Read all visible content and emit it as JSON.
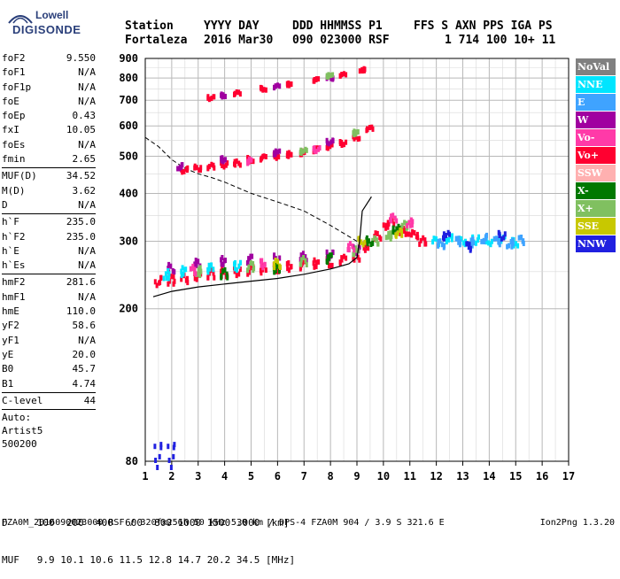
{
  "logo": {
    "line1": "Lowell",
    "line2": "DIGISONDE"
  },
  "header": {
    "row1": [
      "Station",
      "YYYY DAY",
      "DDD HHMMSS P1",
      "FFS S AXN PPS IGA PS"
    ],
    "row2": [
      "Fortaleza",
      "2016 Mar30",
      "090 023000 RSF",
      "1 714 100 10+ 11"
    ]
  },
  "params": {
    "group1": [
      {
        "label": "foF2",
        "value": "9.550"
      },
      {
        "label": "foF1",
        "value": "N/A"
      },
      {
        "label": "foF1p",
        "value": "N/A"
      },
      {
        "label": "foE",
        "value": "N/A"
      },
      {
        "label": "foEp",
        "value": "0.43"
      },
      {
        "label": "fxI",
        "value": "10.05"
      },
      {
        "label": "foEs",
        "value": "N/A"
      },
      {
        "label": "fmin",
        "value": "2.65"
      }
    ],
    "group2": [
      {
        "label": "MUF(D)",
        "value": "34.52"
      },
      {
        "label": "M(D)",
        "value": "3.62"
      },
      {
        "label": "D",
        "value": "N/A"
      }
    ],
    "group3": [
      {
        "label": "h`F",
        "value": "235.0"
      },
      {
        "label": "h`F2",
        "value": "235.0"
      },
      {
        "label": "h`E",
        "value": "N/A"
      },
      {
        "label": "h`Es",
        "value": "N/A"
      }
    ],
    "group4": [
      {
        "label": "hmF2",
        "value": "281.6"
      },
      {
        "label": "hmF1",
        "value": "N/A"
      },
      {
        "label": "hmE",
        "value": "110.0"
      },
      {
        "label": "yF2",
        "value": "58.6"
      },
      {
        "label": "yF1",
        "value": "N/A"
      },
      {
        "label": "yE",
        "value": "20.0"
      },
      {
        "label": "B0",
        "value": "45.7"
      },
      {
        "label": "B1",
        "value": "4.74"
      }
    ],
    "group5": [
      {
        "label": "C-level",
        "value": "44"
      }
    ],
    "auto_lines": [
      "Auto:",
      "Artist5",
      "500200"
    ]
  },
  "legend": [
    {
      "label": "NoVal",
      "color": "#808080"
    },
    {
      "label": "NNE",
      "color": "#00e5ff"
    },
    {
      "label": "E",
      "color": "#3fa3ff"
    },
    {
      "label": "W",
      "color": "#a000a0"
    },
    {
      "label": "Vo-",
      "color": "#ff3aa8"
    },
    {
      "label": "Vo+",
      "color": "#ff0030"
    },
    {
      "label": "SSW",
      "color": "#ffb0b0"
    },
    {
      "label": "X-",
      "color": "#007800"
    },
    {
      "label": "X+",
      "color": "#80c060"
    },
    {
      "label": "SSE",
      "color": "#c8c800"
    },
    {
      "label": "NNW",
      "color": "#2020e0"
    }
  ],
  "chart_data": {
    "type": "scatter",
    "title": "",
    "xlabel": "",
    "ylabel": "",
    "x_ticks": [
      "1",
      "2",
      "3",
      "4",
      "5",
      "6",
      "7",
      "8",
      "9",
      "10",
      "11",
      "12",
      "13",
      "14",
      "15",
      "16",
      "17"
    ],
    "y_ticks": [
      "80",
      "200",
      "300",
      "400",
      "500",
      "600",
      "700",
      "800",
      "900"
    ],
    "xlim": [
      1,
      17
    ],
    "ylim": [
      80,
      900
    ],
    "y_scale": "log",
    "grid": true,
    "series": [
      {
        "name": "Vo+",
        "color": "#ff0030",
        "points": [
          [
            1.5,
            236
          ],
          [
            2,
            238
          ],
          [
            2.5,
            240
          ],
          [
            3,
            244
          ],
          [
            3.5,
            246
          ],
          [
            4,
            248
          ],
          [
            4.5,
            250
          ],
          [
            5,
            252
          ],
          [
            5.5,
            254
          ],
          [
            6,
            256
          ],
          [
            6.5,
            258
          ],
          [
            7,
            260
          ],
          [
            7.5,
            262
          ],
          [
            8,
            264
          ],
          [
            8.5,
            268
          ],
          [
            9,
            274
          ],
          [
            9.4,
            290
          ],
          [
            9.8,
            310
          ],
          [
            10.1,
            330
          ],
          [
            10.3,
            335
          ],
          [
            10.6,
            320
          ],
          [
            10.9,
            318
          ],
          [
            11.2,
            312
          ],
          [
            11.5,
            300
          ],
          [
            2.5,
            460
          ],
          [
            3,
            465
          ],
          [
            3.5,
            470
          ],
          [
            4,
            475
          ],
          [
            4.5,
            480
          ],
          [
            5,
            490
          ],
          [
            5.5,
            495
          ],
          [
            6,
            500
          ],
          [
            6.5,
            505
          ],
          [
            7,
            510
          ],
          [
            7.5,
            520
          ],
          [
            8,
            530
          ],
          [
            8.5,
            540
          ],
          [
            9,
            560
          ],
          [
            9.5,
            590
          ],
          [
            3.5,
            710
          ],
          [
            4.5,
            730
          ],
          [
            5.5,
            750
          ],
          [
            6.5,
            770
          ],
          [
            7.5,
            790
          ],
          [
            8.5,
            815
          ],
          [
            9.2,
            840
          ]
        ]
      },
      {
        "name": "W",
        "color": "#a000a0",
        "points": [
          [
            2,
            255
          ],
          [
            3,
            262
          ],
          [
            4,
            266
          ],
          [
            5,
            268
          ],
          [
            6,
            270
          ],
          [
            7,
            273
          ],
          [
            8,
            276
          ],
          [
            9,
            285
          ],
          [
            2.3,
            470
          ],
          [
            4,
            490
          ],
          [
            6,
            510
          ],
          [
            8,
            545
          ],
          [
            4,
            720
          ],
          [
            6,
            760
          ],
          [
            8,
            800
          ]
        ]
      },
      {
        "name": "NNE",
        "color": "#00e5ff",
        "points": [
          [
            1.8,
            245
          ],
          [
            2.5,
            250
          ],
          [
            3.5,
            255
          ],
          [
            4.5,
            258
          ],
          [
            12,
            300
          ],
          [
            12.5,
            305
          ],
          [
            13,
            300
          ],
          [
            13.5,
            302
          ],
          [
            14,
            300
          ],
          [
            14.5,
            303
          ],
          [
            15,
            298
          ]
        ]
      },
      {
        "name": "E",
        "color": "#3fa3ff",
        "points": [
          [
            12.2,
            295
          ],
          [
            12.8,
            300
          ],
          [
            13.3,
            298
          ],
          [
            13.8,
            305
          ],
          [
            14.3,
            300
          ],
          [
            14.8,
            296
          ],
          [
            15.2,
            302
          ]
        ]
      },
      {
        "name": "NNW",
        "color": "#2020e0",
        "points": [
          [
            12.4,
            310
          ],
          [
            13.2,
            290
          ],
          [
            14.5,
            310
          ],
          [
            1.5,
            83
          ],
          [
            2,
            83
          ]
        ]
      },
      {
        "name": "X+",
        "color": "#80c060",
        "points": [
          [
            3,
            250
          ],
          [
            5,
            258
          ],
          [
            7,
            266
          ],
          [
            9,
            282
          ],
          [
            9.7,
            300
          ],
          [
            10.2,
            310
          ],
          [
            10.8,
            330
          ],
          [
            7,
            515
          ],
          [
            9,
            575
          ],
          [
            8,
            810
          ]
        ]
      },
      {
        "name": "X-",
        "color": "#007800",
        "points": [
          [
            4,
            247
          ],
          [
            6,
            255
          ],
          [
            8,
            270
          ],
          [
            9.5,
            300
          ],
          [
            10.5,
            322
          ]
        ]
      },
      {
        "name": "Vo-",
        "color": "#ff3aa8",
        "points": [
          [
            2.8,
            252
          ],
          [
            5.5,
            262
          ],
          [
            8.8,
            290
          ],
          [
            10.4,
            345
          ],
          [
            11,
            335
          ],
          [
            5,
            485
          ],
          [
            7.5,
            520
          ]
        ]
      },
      {
        "name": "SSE",
        "color": "#c8c800",
        "points": [
          [
            6,
            262
          ],
          [
            9.2,
            300
          ],
          [
            10.6,
            315
          ]
        ]
      }
    ],
    "profile_curve": [
      [
        1.3,
        215
      ],
      [
        2,
        222
      ],
      [
        3,
        228
      ],
      [
        4,
        232
      ],
      [
        5,
        236
      ],
      [
        6,
        240
      ],
      [
        7,
        246
      ],
      [
        8,
        254
      ],
      [
        8.7,
        262
      ],
      [
        9.0,
        272
      ],
      [
        9.1,
        300
      ],
      [
        9.2,
        360
      ],
      [
        9.55,
        392
      ]
    ],
    "muf_curve": [
      [
        1.0,
        560
      ],
      [
        1.5,
        530
      ],
      [
        2,
        490
      ],
      [
        2.5,
        465
      ],
      [
        3,
        450
      ],
      [
        3.5,
        440
      ],
      [
        4,
        428
      ],
      [
        5,
        400
      ],
      [
        6,
        380
      ],
      [
        7,
        360
      ],
      [
        8,
        330
      ],
      [
        9,
        300
      ],
      [
        9.5,
        285
      ]
    ]
  },
  "footer": {
    "line1": "D     100  200  400  600  800 1000 1500 3000 [km]",
    "line2": "MUF   9.9 10.1 10.6 11.5 12.8 14.7 20.2 34.5 [MHz]",
    "filename": "FZA0M_2016090023000.RSF / 320fx256h 50 kHz 5.0 km / DPS-4 FZA0M 904 / 3.9 S 321.6 E",
    "version": "Ion2Png 1.3.20"
  }
}
